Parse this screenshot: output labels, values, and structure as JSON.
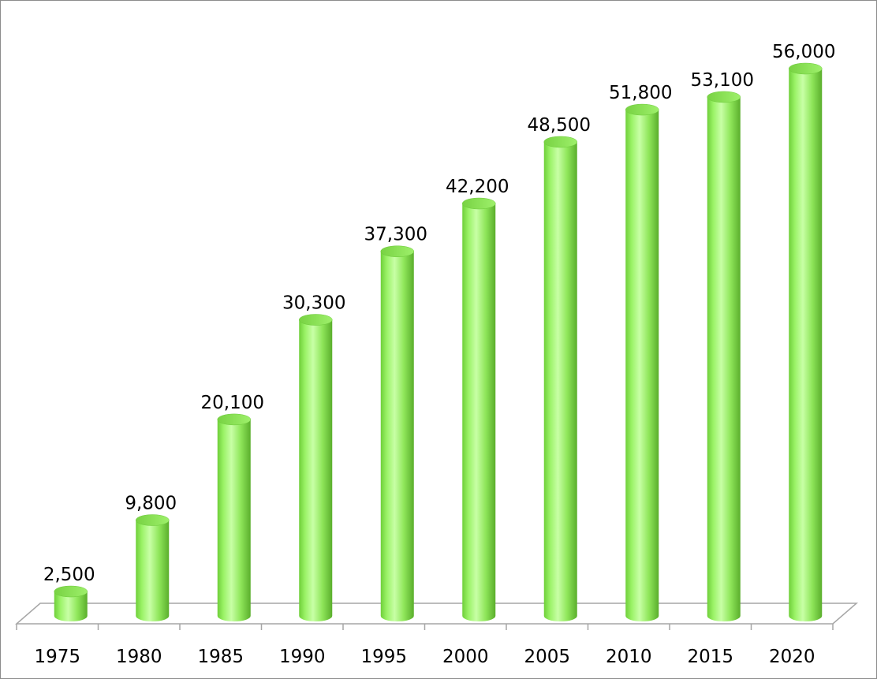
{
  "chart_data": {
    "type": "bar",
    "style": "3d-cylinder",
    "categories": [
      "1975",
      "1980",
      "1985",
      "1990",
      "1995",
      "2000",
      "2005",
      "2010",
      "2015",
      "2020"
    ],
    "values": [
      2500,
      9800,
      20100,
      30300,
      37300,
      42200,
      48500,
      51800,
      53100,
      56000
    ],
    "data_labels": [
      "2,500",
      "9,800",
      "20,100",
      "30,300",
      "37,300",
      "42,200",
      "48,500",
      "51,800",
      "53,100",
      "56,000"
    ],
    "title": "",
    "xlabel": "",
    "ylabel": "",
    "ylim": [
      0,
      60000
    ],
    "grid": false,
    "legend": "none",
    "colors": {
      "bar": "#99ff66",
      "bar_dark": "#5fbf2f",
      "bar_top": "#7fe04a",
      "axis": "#a6a6a6",
      "frame": "#8c8c8c"
    }
  }
}
